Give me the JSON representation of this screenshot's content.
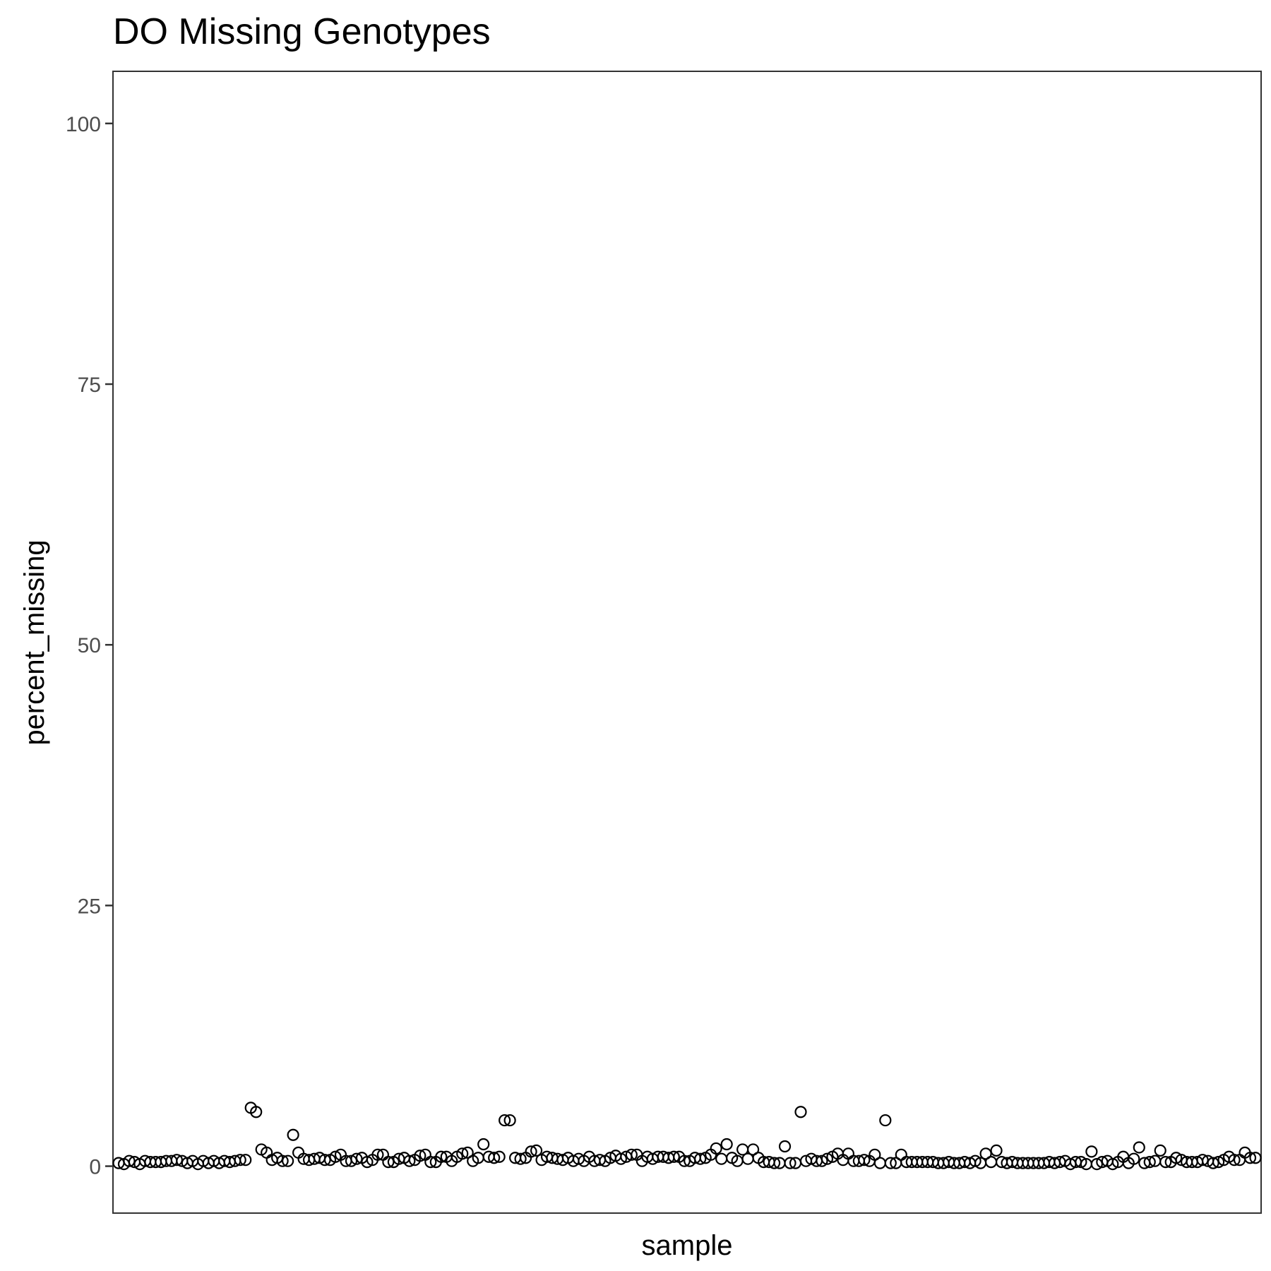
{
  "chart_data": {
    "type": "scatter",
    "title": "DO Missing Genotypes",
    "xlabel": "sample",
    "ylabel": "percent_missing",
    "ylim": [
      -4.5,
      105
    ],
    "yticks": [
      0,
      25,
      50,
      75,
      100
    ],
    "ytick_labels": [
      "0",
      "25",
      "50",
      "75",
      "100"
    ],
    "x_tick_labels": false,
    "grid": false,
    "legend": "none",
    "marker": "open-circle",
    "series": [
      {
        "values": [
          0.3,
          0.2,
          0.5,
          0.4,
          0.2,
          0.5,
          0.4,
          0.4,
          0.4,
          0.5,
          0.5,
          0.6,
          0.5,
          0.3,
          0.5,
          0.2,
          0.5,
          0.3,
          0.5,
          0.3,
          0.5,
          0.4,
          0.5,
          0.6,
          0.6,
          5.6,
          5.2,
          1.6,
          1.3,
          0.6,
          0.8,
          0.5,
          0.5,
          3.0,
          1.3,
          0.7,
          0.6,
          0.7,
          0.8,
          0.6,
          0.6,
          0.9,
          1.1,
          0.5,
          0.5,
          0.7,
          0.8,
          0.4,
          0.6,
          1.1,
          1.1,
          0.4,
          0.4,
          0.7,
          0.8,
          0.5,
          0.6,
          1.0,
          1.1,
          0.4,
          0.4,
          0.9,
          0.9,
          0.5,
          0.9,
          1.2,
          1.3,
          0.5,
          0.8,
          2.1,
          0.9,
          0.8,
          0.9,
          4.4,
          4.4,
          0.8,
          0.7,
          0.8,
          1.4,
          1.5,
          0.6,
          0.9,
          0.8,
          0.7,
          0.6,
          0.8,
          0.5,
          0.7,
          0.5,
          0.9,
          0.5,
          0.6,
          0.5,
          0.8,
          1.0,
          0.7,
          0.9,
          1.1,
          1.1,
          0.5,
          0.9,
          0.7,
          0.9,
          0.9,
          0.8,
          0.9,
          0.9,
          0.5,
          0.5,
          0.8,
          0.7,
          0.8,
          1.1,
          1.7,
          0.7,
          2.1,
          0.8,
          0.5,
          1.6,
          0.7,
          1.6,
          0.8,
          0.4,
          0.4,
          0.3,
          0.3,
          1.9,
          0.3,
          0.3,
          5.2,
          0.5,
          0.7,
          0.5,
          0.5,
          0.7,
          0.9,
          1.2,
          0.6,
          1.2,
          0.5,
          0.5,
          0.6,
          0.5,
          1.1,
          0.3,
          4.4,
          0.3,
          0.3,
          1.1,
          0.4,
          0.4,
          0.4,
          0.4,
          0.4,
          0.4,
          0.3,
          0.3,
          0.4,
          0.3,
          0.3,
          0.4,
          0.3,
          0.5,
          0.3,
          1.2,
          0.4,
          1.5,
          0.4,
          0.3,
          0.4,
          0.3,
          0.3,
          0.3,
          0.3,
          0.3,
          0.3,
          0.4,
          0.3,
          0.4,
          0.5,
          0.2,
          0.4,
          0.4,
          0.2,
          1.4,
          0.2,
          0.4,
          0.5,
          0.2,
          0.4,
          0.9,
          0.3,
          0.7,
          1.8,
          0.3,
          0.4,
          0.5,
          1.5,
          0.4,
          0.4,
          0.8,
          0.6,
          0.4,
          0.4,
          0.4,
          0.6,
          0.5,
          0.3,
          0.4,
          0.6,
          0.9,
          0.6,
          0.6,
          1.3,
          0.8,
          0.8
        ]
      }
    ]
  }
}
